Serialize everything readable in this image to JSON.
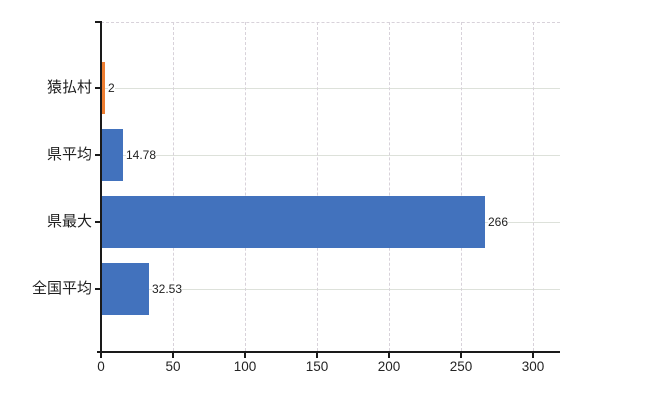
{
  "chart_data": {
    "type": "bar",
    "orientation": "horizontal",
    "title": "",
    "categories": [
      "猿払村",
      "県平均",
      "県最大",
      "全国平均"
    ],
    "values": [
      2,
      14.78,
      266,
      32.53
    ],
    "value_labels": [
      "2",
      "14.78",
      "266",
      "32.53"
    ],
    "series_colors": [
      "#ed7d31",
      "#4272bd",
      "#4272bd",
      "#4272bd"
    ],
    "x_ticks": [
      0,
      50,
      100,
      150,
      200,
      250,
      300
    ],
    "x_tick_labels": [
      "0",
      "50",
      "100",
      "150",
      "200",
      "250",
      "300"
    ],
    "xlim": [
      0,
      319
    ],
    "ylabel": "",
    "xlabel": "",
    "legend": "none",
    "grid": {
      "vertical": "dashed",
      "horizontal": "solid"
    }
  },
  "colors": {
    "bar_blue": "#4272bd",
    "bar_orange": "#ed7d31",
    "axis": "#1a1a1a",
    "grid_vertical": "#d8d2da",
    "grid_horizontal": "#dde1da",
    "text": "#242424",
    "background": "#ffffff"
  }
}
